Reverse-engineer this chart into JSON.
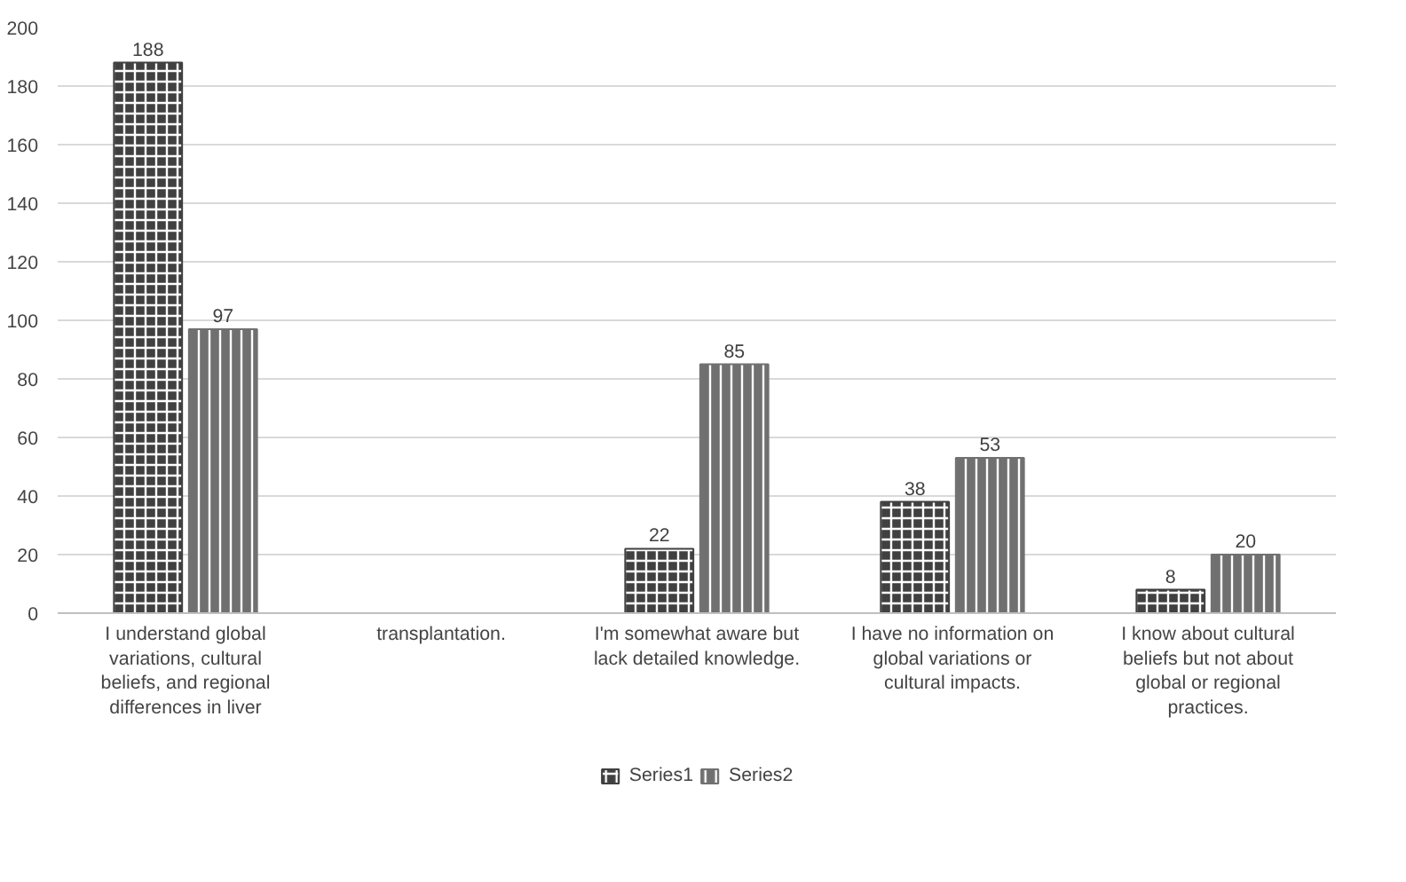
{
  "chart_data": {
    "type": "bar",
    "categories": [
      "I understand global variations, cultural beliefs, and regional differences in liver",
      "transplantation.",
      "I'm somewhat aware but lack detailed knowledge.",
      "I have no information on global variations or cultural impacts.",
      "I know about cultural beliefs but not about global or regional practices."
    ],
    "series": [
      {
        "name": "Series1",
        "color": "#404040",
        "values": [
          188,
          null,
          22,
          38,
          8
        ]
      },
      {
        "name": "Series2",
        "color": "#707070",
        "values": [
          97,
          null,
          85,
          53,
          20
        ]
      }
    ],
    "ylim": [
      0,
      200
    ],
    "yticks": [
      0,
      20,
      40,
      60,
      80,
      100,
      120,
      140,
      160,
      180,
      200
    ],
    "grid": "y",
    "legend": "bottom",
    "data_labels": true
  }
}
